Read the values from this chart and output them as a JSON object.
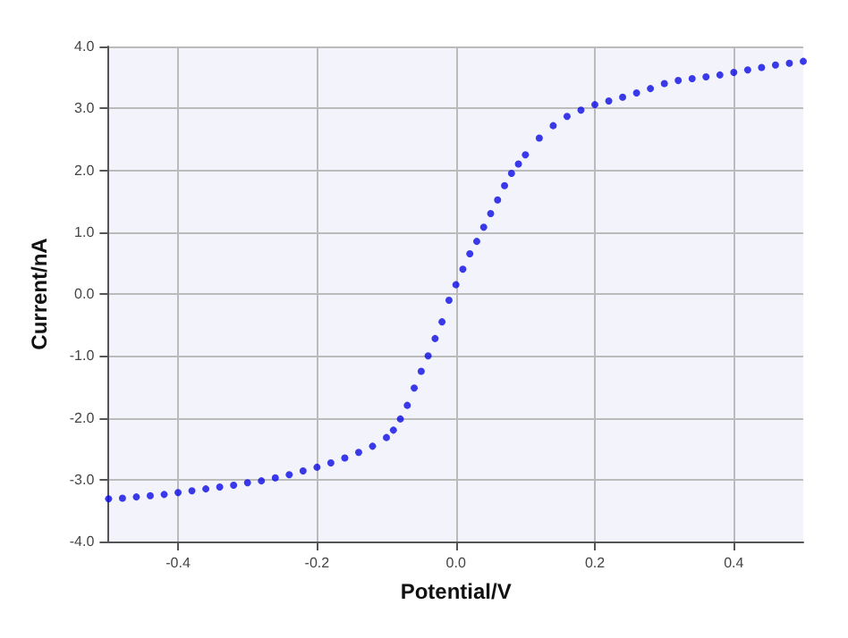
{
  "chart_data": {
    "type": "scatter",
    "xlabel": "Potential/V",
    "ylabel": "Current/nA",
    "x": [
      -0.5,
      -0.48,
      -0.46,
      -0.44,
      -0.42,
      -0.4,
      -0.38,
      -0.36,
      -0.34,
      -0.32,
      -0.3,
      -0.28,
      -0.26,
      -0.24,
      -0.22,
      -0.2,
      -0.18,
      -0.16,
      -0.14,
      -0.12,
      -0.1,
      -0.09,
      -0.08,
      -0.07,
      -0.06,
      -0.05,
      -0.04,
      -0.03,
      -0.02,
      -0.01,
      0,
      0.01,
      0.02,
      0.03,
      0.04,
      0.05,
      0.06,
      0.07,
      0.08,
      0.09,
      0.1,
      0.12,
      0.14,
      0.16,
      0.18,
      0.2,
      0.22,
      0.24,
      0.26,
      0.28,
      0.3,
      0.32,
      0.34,
      0.36,
      0.38,
      0.4,
      0.42,
      0.44,
      0.46,
      0.48,
      0.5
    ],
    "series": [
      {
        "color": "#0a0ae6",
        "values": [
          -3.31,
          -3.3,
          -3.28,
          -3.26,
          -3.24,
          -3.21,
          -3.18,
          -3.15,
          -3.12,
          -3.09,
          -3.05,
          -3.02,
          -2.97,
          -2.92,
          -2.86,
          -2.8,
          -2.73,
          -2.65,
          -2.56,
          -2.46,
          -2.32,
          -2.2,
          -2.02,
          -1.8,
          -1.52,
          -1.25,
          -1.0,
          -0.72,
          -0.45,
          -0.1,
          0.15,
          0.4,
          0.65,
          0.85,
          1.08,
          1.3,
          1.52,
          1.75,
          1.95,
          2.1,
          2.25,
          2.52,
          2.72,
          2.87,
          2.97,
          3.06,
          3.12,
          3.18,
          3.25,
          3.32,
          3.4,
          3.45,
          3.48,
          3.51,
          3.54,
          3.58,
          3.62,
          3.66,
          3.7,
          3.73,
          3.76
        ]
      }
    ],
    "xlim": [
      -0.5,
      0.5
    ],
    "xticks": [
      -0.4,
      -0.2,
      {
        "value": 0,
        "label": "0.0"
      },
      0.2,
      0.4
    ],
    "ylim": [
      -4,
      4
    ],
    "yticks": [
      {
        "value": -4,
        "label": "-4.0"
      },
      {
        "value": -3,
        "label": "-3.0"
      },
      {
        "value": -2,
        "label": "-2.0"
      },
      {
        "value": -1,
        "label": "-1.0"
      },
      {
        "value": 0,
        "label": "0.0"
      },
      {
        "value": 1,
        "label": "1.0"
      },
      {
        "value": 2,
        "label": "2.0"
      },
      {
        "value": 3,
        "label": "3.0"
      },
      {
        "value": 4,
        "label": "4.0"
      }
    ],
    "grid": true,
    "marker": "circle"
  }
}
